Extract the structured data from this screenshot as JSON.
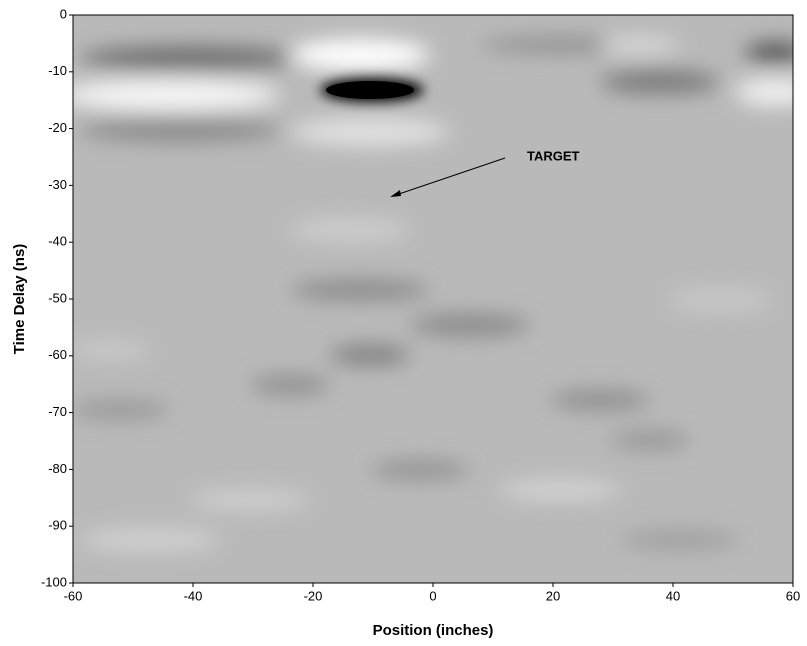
{
  "chart_data": {
    "type": "heatmap",
    "xlabel": "Position (inches)",
    "ylabel": "Time Delay (ns)",
    "xlim": [
      -60,
      60
    ],
    "ylim": [
      -100,
      0
    ],
    "xticks": [
      -60,
      -40,
      -20,
      0,
      20,
      40,
      60
    ],
    "yticks": [
      0,
      -10,
      -20,
      -30,
      -40,
      -50,
      -60,
      -70,
      -80,
      -90,
      -100
    ],
    "annotations": [
      "TARGET"
    ]
  }
}
